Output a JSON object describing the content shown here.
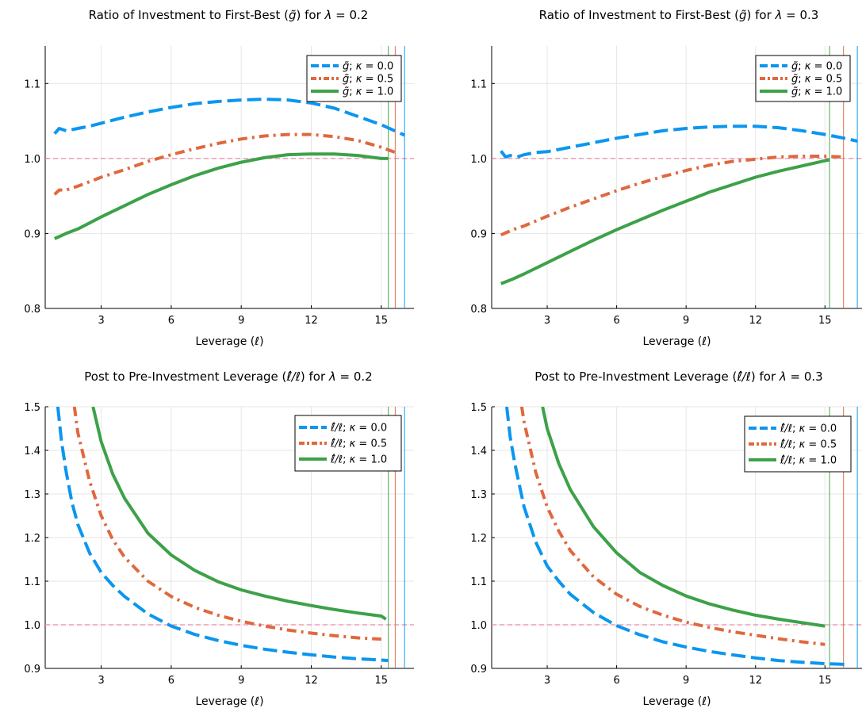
{
  "colors": {
    "kappa0": "#0b96ef",
    "kappa05": "#e0683e",
    "kappa1": "#3da149",
    "refline": "#e98aa7"
  },
  "chart_data": [
    {
      "type": "line",
      "title": "Ratio of Investment to First-Best ($\\tilde{g}$) for $\\lambda = $ 0.2",
      "title_parts": [
        "Ratio of Investment to First-Best (",
        "g̃",
        ") for ",
        "λ = ",
        " 0.2"
      ],
      "xlabel": "Leverage (ℓ)",
      "xlabel_parts": [
        "Leverage (",
        "ℓ",
        ")"
      ],
      "ylabel": "",
      "xlim": [
        0.6,
        16.4
      ],
      "ylim": [
        0.8,
        1.15
      ],
      "xticks": [
        3,
        6,
        9,
        12,
        15
      ],
      "yticks": [
        0.8,
        0.9,
        1.0,
        1.1
      ],
      "grid": true,
      "legend_position": "top-right",
      "hline": 1.0,
      "vlines": [
        {
          "x": 15.3,
          "series": "κ = 1.0"
        },
        {
          "x": 15.6,
          "series": "κ = 0.5"
        },
        {
          "x": 16.0,
          "series": "κ = 0.0"
        }
      ],
      "series": [
        {
          "name": "g̃; κ = 0.0",
          "legend_parts": [
            "g̃",
            "; ",
            "κ = ",
            " 0.0"
          ],
          "dash": "dash",
          "x": [
            1.0,
            1.2,
            1.5,
            2.0,
            2.5,
            3.0,
            4.0,
            5.0,
            6.0,
            7.0,
            8.0,
            9.0,
            10.0,
            11.0,
            12.0,
            13.0,
            14.0,
            15.0,
            15.5,
            16.0
          ],
          "y": [
            1.033,
            1.04,
            1.037,
            1.04,
            1.043,
            1.047,
            1.055,
            1.062,
            1.068,
            1.073,
            1.076,
            1.078,
            1.079,
            1.078,
            1.074,
            1.067,
            1.056,
            1.045,
            1.038,
            1.031
          ]
        },
        {
          "name": "g̃; κ = 0.5",
          "legend_parts": [
            "g̃",
            "; ",
            "κ = ",
            " 0.5"
          ],
          "dash": "dashdot",
          "x": [
            1.0,
            1.2,
            1.5,
            2.0,
            3.0,
            4.0,
            5.0,
            6.0,
            7.0,
            8.0,
            9.0,
            10.0,
            11.0,
            12.0,
            13.0,
            14.0,
            15.0,
            15.6
          ],
          "y": [
            0.952,
            0.958,
            0.958,
            0.963,
            0.975,
            0.985,
            0.996,
            1.005,
            1.013,
            1.02,
            1.026,
            1.03,
            1.032,
            1.032,
            1.029,
            1.024,
            1.015,
            1.008
          ]
        },
        {
          "name": "g̃; κ = 1.0",
          "legend_parts": [
            "g̃",
            "; ",
            "κ = ",
            " 1.0"
          ],
          "dash": "solid",
          "x": [
            1.0,
            1.5,
            2.0,
            3.0,
            4.0,
            5.0,
            6.0,
            7.0,
            8.0,
            9.0,
            10.0,
            11.0,
            12.0,
            13.0,
            14.0,
            15.0,
            15.3
          ],
          "y": [
            0.893,
            0.9,
            0.906,
            0.922,
            0.937,
            0.952,
            0.965,
            0.977,
            0.987,
            0.995,
            1.001,
            1.005,
            1.006,
            1.006,
            1.004,
            1.0,
            1.0
          ]
        }
      ]
    },
    {
      "type": "line",
      "title": "Ratio of Investment to First-Best ($\\tilde{g}$) for $\\lambda = $ 0.3",
      "title_parts": [
        "Ratio of Investment to First-Best (",
        "g̃",
        ") for ",
        "λ = ",
        " 0.3"
      ],
      "xlabel": "Leverage (ℓ)",
      "xlabel_parts": [
        "Leverage (",
        "ℓ",
        ")"
      ],
      "ylabel": "",
      "xlim": [
        0.6,
        16.6
      ],
      "ylim": [
        0.8,
        1.15
      ],
      "xticks": [
        3,
        6,
        9,
        12,
        15
      ],
      "yticks": [
        0.8,
        0.9,
        1.0,
        1.1
      ],
      "grid": true,
      "legend_position": "top-right",
      "hline": 1.0,
      "vlines": [
        {
          "x": 15.2,
          "series": "κ = 1.0"
        },
        {
          "x": 15.8,
          "series": "κ = 0.5"
        },
        {
          "x": 16.4,
          "series": "κ = 0.0"
        }
      ],
      "series": [
        {
          "name": "g̃; κ = 0.0",
          "legend_parts": [
            "g̃",
            "; ",
            "κ = ",
            " 0.0"
          ],
          "dash": "dash",
          "x": [
            1.0,
            1.2,
            1.4,
            1.7,
            2.0,
            2.5,
            3.0,
            4.0,
            5.0,
            6.0,
            7.0,
            8.0,
            9.0,
            10.0,
            11.0,
            12.0,
            13.0,
            14.0,
            15.0,
            16.0,
            16.4
          ],
          "y": [
            1.01,
            1.002,
            1.004,
            1.002,
            1.005,
            1.008,
            1.009,
            1.015,
            1.021,
            1.027,
            1.032,
            1.037,
            1.04,
            1.042,
            1.043,
            1.043,
            1.041,
            1.037,
            1.032,
            1.026,
            1.023
          ]
        },
        {
          "name": "g̃; κ = 0.5",
          "legend_parts": [
            "g̃",
            "; ",
            "κ = ",
            " 0.5"
          ],
          "dash": "dashdot",
          "x": [
            1.0,
            1.3,
            1.6,
            2.0,
            3.0,
            4.0,
            5.0,
            6.0,
            7.0,
            8.0,
            9.0,
            10.0,
            11.0,
            12.0,
            13.0,
            14.0,
            15.0,
            15.8
          ],
          "y": [
            0.898,
            0.902,
            0.906,
            0.91,
            0.923,
            0.935,
            0.946,
            0.957,
            0.967,
            0.976,
            0.984,
            0.991,
            0.996,
            0.999,
            1.002,
            1.003,
            1.003,
            1.002
          ]
        },
        {
          "name": "g̃; κ = 1.0",
          "legend_parts": [
            "g̃",
            "; ",
            "κ = ",
            " 1.0"
          ],
          "dash": "solid",
          "x": [
            1.0,
            1.5,
            2.0,
            3.0,
            4.0,
            5.0,
            6.0,
            7.0,
            8.0,
            9.0,
            10.0,
            11.0,
            12.0,
            13.0,
            14.0,
            15.0,
            15.2
          ],
          "y": [
            0.833,
            0.839,
            0.846,
            0.861,
            0.876,
            0.891,
            0.905,
            0.918,
            0.931,
            0.943,
            0.955,
            0.965,
            0.975,
            0.983,
            0.99,
            0.997,
            0.998
          ]
        }
      ]
    },
    {
      "type": "line",
      "title": "Post to Pre-Investment Leverage ($\\hat{\\ell}/\\ell$) for $\\lambda = $ 0.2",
      "title_parts": [
        "Post to Pre-Investment Leverage (",
        "ℓ̂/ℓ",
        ") for ",
        "λ = ",
        " 0.2"
      ],
      "xlabel": "Leverage (ℓ)",
      "xlabel_parts": [
        "Leverage (",
        "ℓ",
        ")"
      ],
      "ylabel": "",
      "xlim": [
        0.6,
        16.4
      ],
      "ylim": [
        0.9,
        1.5
      ],
      "xticks": [
        3,
        6,
        9,
        12,
        15
      ],
      "yticks": [
        0.9,
        1.0,
        1.1,
        1.2,
        1.3,
        1.4,
        1.5
      ],
      "grid": true,
      "legend_position": "top-right",
      "hline": 1.0,
      "vlines": [
        {
          "x": 15.3,
          "series": "κ = 1.0"
        },
        {
          "x": 15.6,
          "series": "κ = 0.5"
        },
        {
          "x": 16.0,
          "series": "κ = 0.0"
        }
      ],
      "series": [
        {
          "name": "ℓ̂/ℓ; κ = 0.0",
          "legend_parts": [
            "ℓ̂/ℓ",
            "; ",
            "κ = ",
            " 0.0"
          ],
          "dash": "dash",
          "x": [
            1.14,
            1.3,
            1.5,
            1.75,
            2.0,
            2.5,
            3.0,
            3.5,
            4.0,
            5.0,
            6.0,
            7.0,
            8.0,
            9.0,
            10.0,
            11.0,
            12.0,
            13.0,
            14.0,
            15.0,
            15.3
          ],
          "y": [
            1.5,
            1.42,
            1.35,
            1.28,
            1.23,
            1.165,
            1.12,
            1.09,
            1.065,
            1.025,
            0.997,
            0.978,
            0.964,
            0.953,
            0.944,
            0.937,
            0.931,
            0.926,
            0.922,
            0.919,
            0.918
          ]
        },
        {
          "name": "ℓ̂/ℓ; κ = 0.5",
          "legend_parts": [
            "ℓ̂/ℓ",
            "; ",
            "κ = ",
            " 0.5"
          ],
          "dash": "dashdot",
          "x": [
            1.85,
            2.0,
            2.5,
            3.0,
            3.5,
            4.0,
            5.0,
            6.0,
            7.0,
            8.0,
            9.0,
            10.0,
            11.0,
            12.0,
            13.0,
            14.0,
            15.0
          ],
          "y": [
            1.5,
            1.44,
            1.33,
            1.25,
            1.195,
            1.155,
            1.1,
            1.065,
            1.04,
            1.022,
            1.008,
            0.997,
            0.988,
            0.981,
            0.975,
            0.97,
            0.967
          ]
        },
        {
          "name": "ℓ̂/ℓ; κ = 1.0",
          "legend_parts": [
            "ℓ̂/ℓ",
            "; ",
            "κ = ",
            " 1.0"
          ],
          "dash": "solid",
          "x": [
            2.65,
            3.0,
            3.5,
            4.0,
            5.0,
            6.0,
            7.0,
            8.0,
            9.0,
            10.0,
            11.0,
            12.0,
            13.0,
            14.0,
            15.0,
            15.2
          ],
          "y": [
            1.5,
            1.42,
            1.345,
            1.29,
            1.21,
            1.16,
            1.125,
            1.099,
            1.08,
            1.066,
            1.054,
            1.044,
            1.035,
            1.027,
            1.02,
            1.013
          ]
        }
      ]
    },
    {
      "type": "line",
      "title": "Post to Pre-Investment Leverage ($\\hat{\\ell}/\\ell$) for $\\lambda = $ 0.3",
      "title_parts": [
        "Post to Pre-Investment Leverage (",
        "ℓ̂/ℓ",
        ") for ",
        "λ = ",
        " 0.3"
      ],
      "xlabel": "Leverage (ℓ)",
      "xlabel_parts": [
        "Leverage (",
        "ℓ",
        ")"
      ],
      "ylabel": "",
      "xlim": [
        0.6,
        16.6
      ],
      "ylim": [
        0.9,
        1.5
      ],
      "xticks": [
        3,
        6,
        9,
        12,
        15
      ],
      "yticks": [
        0.9,
        1.0,
        1.1,
        1.2,
        1.3,
        1.4,
        1.5
      ],
      "grid": true,
      "legend_position": "top-right",
      "hline": 1.0,
      "vlines": [
        {
          "x": 15.2,
          "series": "κ = 1.0"
        },
        {
          "x": 15.8,
          "series": "κ = 0.5"
        },
        {
          "x": 16.4,
          "series": "κ = 0.0"
        }
      ],
      "series": [
        {
          "name": "ℓ̂/ℓ; κ = 0.0",
          "legend_parts": [
            "ℓ̂/ℓ",
            "; ",
            "κ = ",
            " 0.0"
          ],
          "dash": "dash",
          "x": [
            1.25,
            1.4,
            1.6,
            1.8,
            2.0,
            2.5,
            3.0,
            3.5,
            4.0,
            5.0,
            6.0,
            7.0,
            8.0,
            9.0,
            10.0,
            11.0,
            12.0,
            13.0,
            14.0,
            15.0,
            16.0
          ],
          "y": [
            1.5,
            1.43,
            1.37,
            1.32,
            1.27,
            1.19,
            1.135,
            1.1,
            1.07,
            1.028,
            0.998,
            0.977,
            0.961,
            0.949,
            0.939,
            0.931,
            0.924,
            0.918,
            0.914,
            0.911,
            0.909
          ]
        },
        {
          "name": "ℓ̂/ℓ; κ = 0.5",
          "legend_parts": [
            "ℓ̂/ℓ",
            "; ",
            "κ = ",
            " 0.5"
          ],
          "dash": "dashdot",
          "x": [
            1.9,
            2.0,
            2.5,
            3.0,
            3.5,
            4.0,
            5.0,
            6.0,
            7.0,
            8.0,
            9.0,
            10.0,
            11.0,
            12.0,
            13.0,
            14.0,
            15.0
          ],
          "y": [
            1.5,
            1.465,
            1.35,
            1.27,
            1.215,
            1.17,
            1.11,
            1.07,
            1.042,
            1.022,
            1.006,
            0.994,
            0.984,
            0.976,
            0.968,
            0.961,
            0.955
          ]
        },
        {
          "name": "ℓ̂/ℓ; κ = 1.0",
          "legend_parts": [
            "ℓ̂/ℓ",
            "; ",
            "κ = ",
            " 1.0"
          ],
          "dash": "solid",
          "x": [
            2.8,
            3.0,
            3.5,
            4.0,
            5.0,
            6.0,
            7.0,
            8.0,
            9.0,
            10.0,
            11.0,
            12.0,
            13.0,
            14.0,
            15.0
          ],
          "y": [
            1.5,
            1.45,
            1.37,
            1.31,
            1.225,
            1.165,
            1.12,
            1.09,
            1.066,
            1.048,
            1.034,
            1.022,
            1.013,
            1.005,
            0.997
          ]
        }
      ]
    }
  ]
}
